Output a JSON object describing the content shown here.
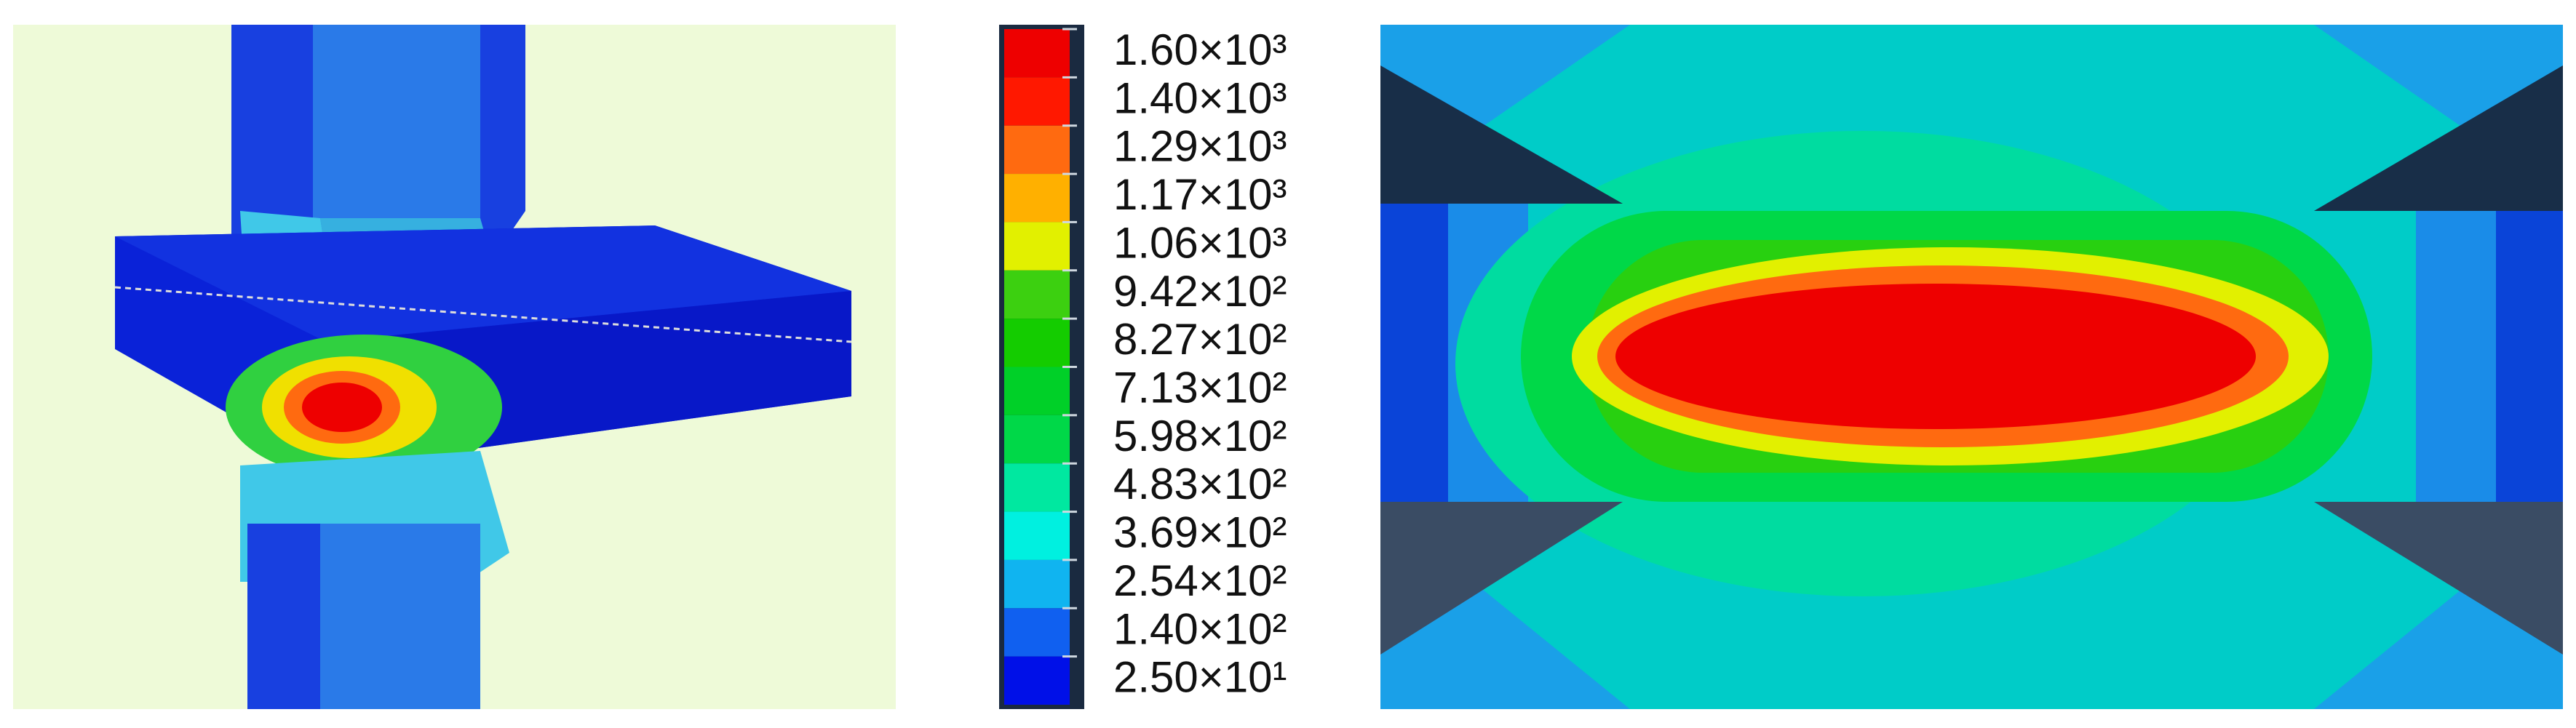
{
  "legend": {
    "labels": [
      "1.60×10³",
      "1.40×10³",
      "1.29×10³",
      "1.17×10³",
      "1.06×10³",
      "9.42×10²",
      "8.27×10²",
      "7.13×10²",
      "5.98×10²",
      "4.83×10²",
      "3.69×10²",
      "2.54×10²",
      "1.40×10²",
      "2.50×10¹"
    ],
    "colors": [
      "#ee0000",
      "#ff1800",
      "#ff6a10",
      "#ffb000",
      "#e2f000",
      "#3cd010",
      "#14cc00",
      "#00d028",
      "#00d848",
      "#00e8a0",
      "#00f0e0",
      "#10b4f0",
      "#1060f0",
      "#0010e8"
    ]
  }
}
